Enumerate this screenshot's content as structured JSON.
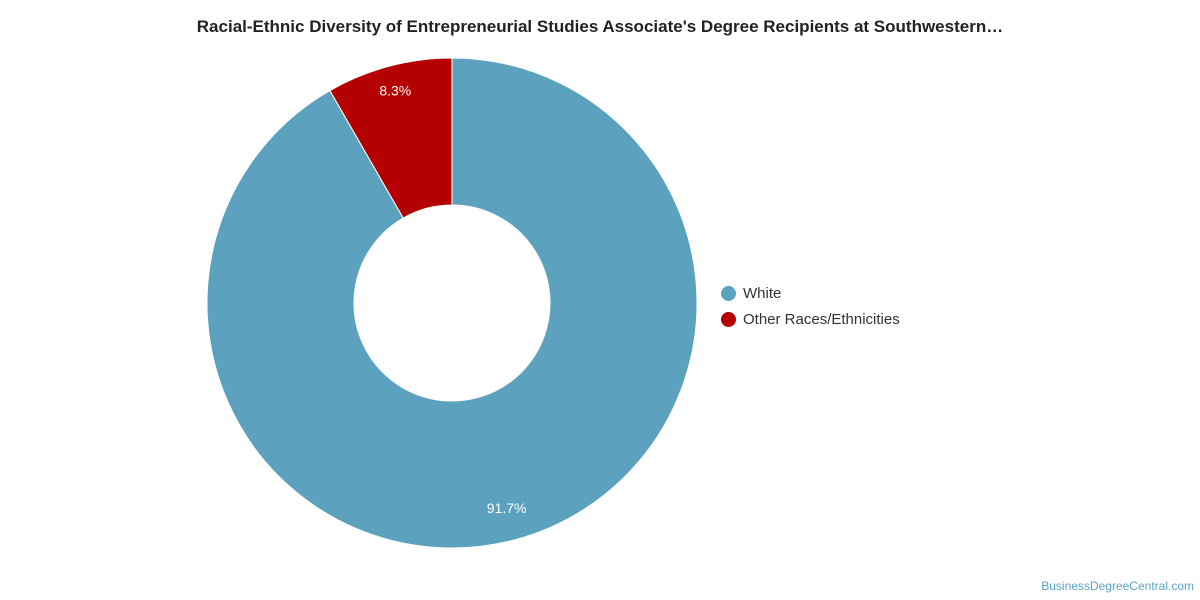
{
  "chart_data": {
    "type": "pie",
    "title": "Racial-Ethnic Diversity of Entrepreneurial Studies Associate's Degree Recipients at Southwestern…",
    "donut": true,
    "slices": [
      {
        "name": "White",
        "value": 91.7,
        "label": "91.7%",
        "color": "#5ca2be"
      },
      {
        "name": "Other Races/Ethnicities",
        "value": 8.3,
        "label": "8.3%",
        "color": "#b50000"
      }
    ],
    "legend_position": "right"
  },
  "watermark": "BusinessDegreeCentral.com"
}
